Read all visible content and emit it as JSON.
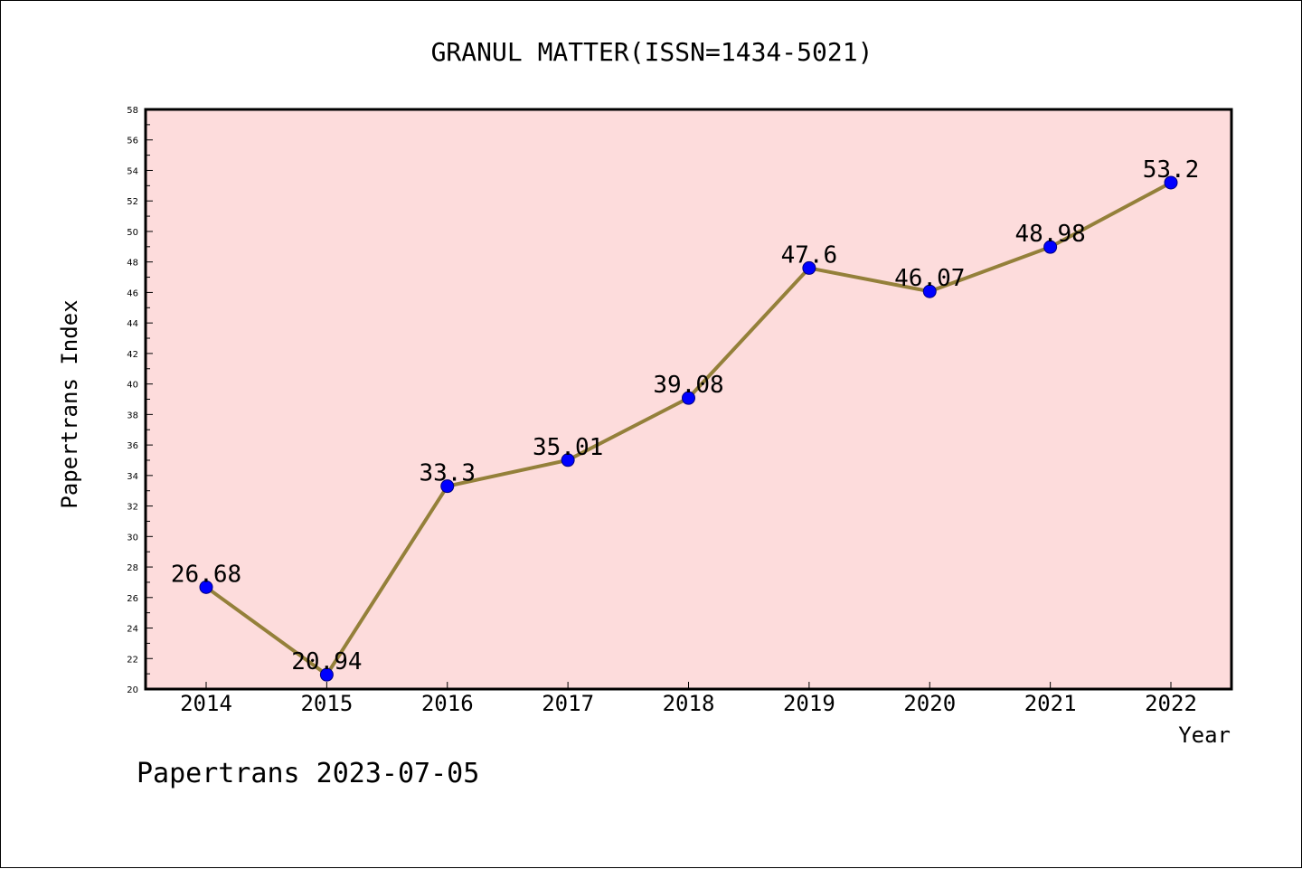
{
  "chart_data": {
    "type": "line",
    "title": "GRANUL MATTER(ISSN=1434-5021)",
    "xlabel": "Year",
    "ylabel": "Papertrans Index",
    "footer": "Papertrans 2023-07-05",
    "categories": [
      "2014",
      "2015",
      "2016",
      "2017",
      "2018",
      "2019",
      "2020",
      "2021",
      "2022"
    ],
    "values": [
      26.68,
      20.94,
      33.3,
      35.01,
      39.08,
      47.6,
      46.07,
      48.98,
      53.2
    ],
    "data_labels": [
      "26.68",
      "20.94",
      "33.3",
      "35.01",
      "39.08",
      "47.6",
      "46.07",
      "48.98",
      "53.2"
    ],
    "ylim": [
      20,
      58
    ],
    "ytick_step": 2,
    "ytick_labels": [
      "20",
      "22",
      "24",
      "26",
      "28",
      "30",
      "32",
      "34",
      "36",
      "38",
      "40",
      "42",
      "44",
      "46",
      "48",
      "50",
      "52",
      "54",
      "56",
      "58"
    ],
    "grid": false,
    "colors": {
      "plot_background": "#fddcdc",
      "line": "#94803a",
      "marker": "#0000ff",
      "marker_edge": "#000080",
      "axis": "#000000"
    }
  }
}
